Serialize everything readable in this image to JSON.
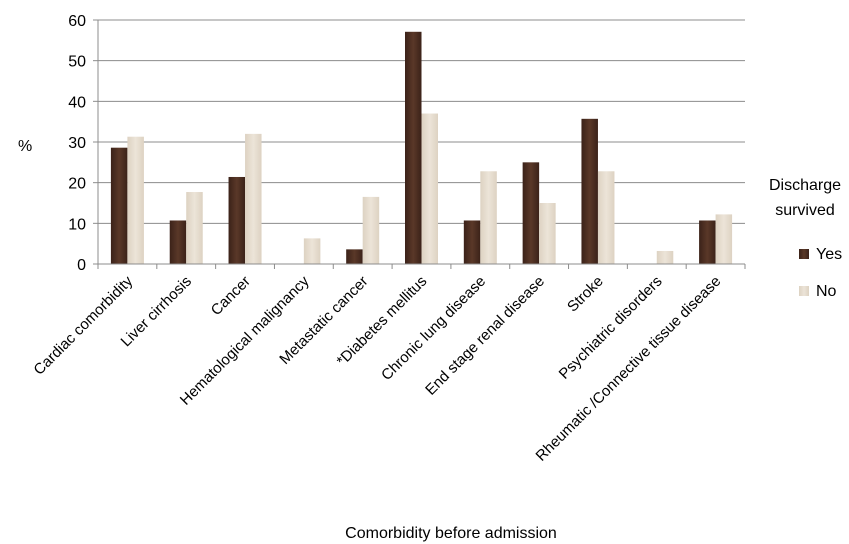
{
  "chart_data": {
    "type": "bar",
    "title": "",
    "xlabel": "Comorbidity before admission",
    "ylabel": "%",
    "ylim": [
      0,
      60
    ],
    "yticks": [
      0,
      10,
      20,
      30,
      40,
      50,
      60
    ],
    "grid": true,
    "legend_title": [
      "Discharge",
      "survived"
    ],
    "legend_position": "right",
    "categories": [
      "Cardiac comorbidity",
      "Liver cirrhosis",
      "Cancer",
      "Hematological malignancy",
      "Metastatic cancer",
      "*Diabetes mellitus",
      "Chronic lung disease",
      "End stage renal disease",
      "Stroke",
      "Psychiatric disorders",
      "Rheumatic /Connective tissue disease"
    ],
    "series": [
      {
        "name": "Yes",
        "color": "#4a2c20",
        "values": [
          28.6,
          10.7,
          21.4,
          0,
          3.6,
          57.1,
          10.7,
          25.0,
          35.7,
          0,
          10.7
        ]
      },
      {
        "name": "No",
        "color": "#e6dccd",
        "values": [
          31.3,
          17.7,
          32.0,
          6.3,
          16.5,
          37.0,
          22.8,
          15.0,
          22.8,
          3.2,
          12.2
        ]
      }
    ]
  }
}
